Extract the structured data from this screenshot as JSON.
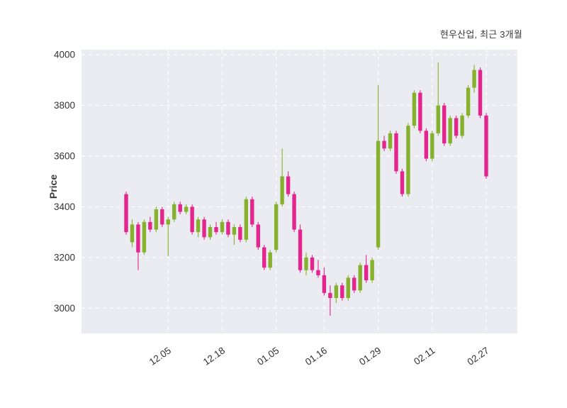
{
  "header": {
    "title": "현우산업, 최근 3개월"
  },
  "chart_data": {
    "type": "candlestick",
    "title": "현우산업, 최근 3개월",
    "xlabel": "",
    "ylabel": "Price",
    "ylim": [
      2900,
      4020
    ],
    "yticks": [
      3000,
      3200,
      3400,
      3600,
      3800,
      4000
    ],
    "xtick_labels": [
      "12.05",
      "12.18",
      "01.05",
      "01.16",
      "01.29",
      "02.11",
      "02.27"
    ],
    "xtick_indices": [
      7,
      16,
      25,
      33,
      42,
      51,
      60
    ],
    "grid": true,
    "grid_style": "white-dashed",
    "legend": "none",
    "colors": {
      "up": "#86b12d",
      "down": "#e3258d",
      "plot_background": "#ebebf2",
      "grid_line": "#ffffff",
      "tick_text": "#333333",
      "title_text": "#3a3a3a"
    },
    "candles_format": [
      "open",
      "high",
      "low",
      "close"
    ],
    "candles": [
      [
        3450,
        3460,
        3290,
        3300
      ],
      [
        3260,
        3350,
        3240,
        3330
      ],
      [
        3330,
        3340,
        3150,
        3220
      ],
      [
        3220,
        3350,
        3210,
        3340
      ],
      [
        3340,
        3360,
        3300,
        3310
      ],
      [
        3310,
        3400,
        3300,
        3390
      ],
      [
        3390,
        3400,
        3320,
        3330
      ],
      [
        3330,
        3360,
        3205,
        3350
      ],
      [
        3350,
        3420,
        3340,
        3410
      ],
      [
        3410,
        3420,
        3370,
        3380
      ],
      [
        3380,
        3410,
        3370,
        3400
      ],
      [
        3400,
        3410,
        3290,
        3300
      ],
      [
        3300,
        3360,
        3280,
        3350
      ],
      [
        3350,
        3360,
        3270,
        3280
      ],
      [
        3280,
        3330,
        3270,
        3320
      ],
      [
        3320,
        3340,
        3290,
        3300
      ],
      [
        3300,
        3350,
        3290,
        3340
      ],
      [
        3340,
        3350,
        3280,
        3290
      ],
      [
        3290,
        3330,
        3250,
        3320
      ],
      [
        3320,
        3330,
        3260,
        3270
      ],
      [
        3270,
        3440,
        3260,
        3430
      ],
      [
        3430,
        3440,
        3320,
        3330
      ],
      [
        3330,
        3340,
        3230,
        3240
      ],
      [
        3240,
        3250,
        3150,
        3160
      ],
      [
        3160,
        3230,
        3150,
        3220
      ],
      [
        3230,
        3420,
        3220,
        3410
      ],
      [
        3410,
        3630,
        3400,
        3520
      ],
      [
        3520,
        3540,
        3440,
        3450
      ],
      [
        3450,
        3460,
        3300,
        3310
      ],
      [
        3310,
        3330,
        3140,
        3150
      ],
      [
        3150,
        3220,
        3130,
        3200
      ],
      [
        3200,
        3210,
        3140,
        3150
      ],
      [
        3150,
        3190,
        3120,
        3130
      ],
      [
        3130,
        3160,
        3050,
        3060
      ],
      [
        3060,
        3090,
        2970,
        3040
      ],
      [
        3040,
        3100,
        3020,
        3090
      ],
      [
        3090,
        3100,
        3030,
        3040
      ],
      [
        3040,
        3130,
        3030,
        3120
      ],
      [
        3120,
        3130,
        3060,
        3070
      ],
      [
        3070,
        3180,
        3060,
        3170
      ],
      [
        3170,
        3210,
        3100,
        3110
      ],
      [
        3110,
        3200,
        3100,
        3190
      ],
      [
        3240,
        3880,
        3230,
        3660
      ],
      [
        3660,
        3680,
        3620,
        3630
      ],
      [
        3630,
        3700,
        3620,
        3690
      ],
      [
        3690,
        3700,
        3530,
        3540
      ],
      [
        3540,
        3550,
        3440,
        3450
      ],
      [
        3450,
        3730,
        3440,
        3720
      ],
      [
        3720,
        3860,
        3710,
        3850
      ],
      [
        3850,
        3860,
        3690,
        3700
      ],
      [
        3700,
        3710,
        3580,
        3590
      ],
      [
        3590,
        3700,
        3580,
        3690
      ],
      [
        3690,
        3970,
        3680,
        3800
      ],
      [
        3800,
        3810,
        3640,
        3650
      ],
      [
        3650,
        3760,
        3640,
        3750
      ],
      [
        3750,
        3760,
        3670,
        3680
      ],
      [
        3680,
        3770,
        3670,
        3760
      ],
      [
        3760,
        3880,
        3750,
        3870
      ],
      [
        3870,
        3960,
        3850,
        3940
      ],
      [
        3940,
        3950,
        3750,
        3760
      ],
      [
        3760,
        3770,
        3510,
        3520
      ]
    ]
  }
}
